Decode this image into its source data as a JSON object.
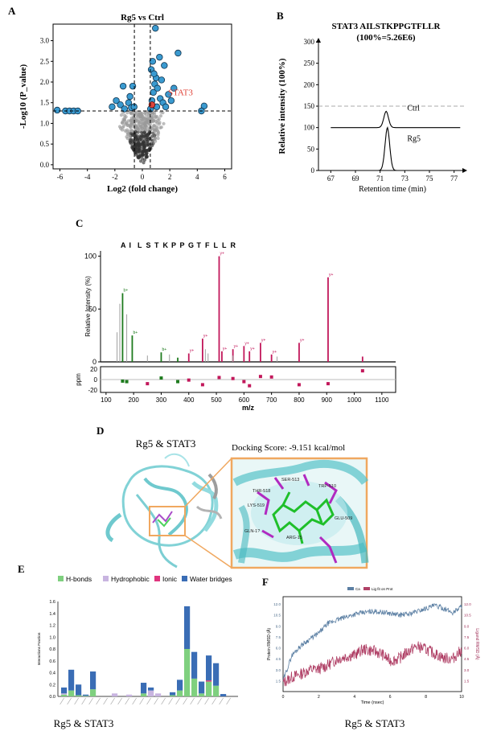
{
  "panels": {
    "A": {
      "letter": "A",
      "caption": "Rg5 vs Ctrl"
    },
    "B": {
      "letter": "B",
      "caption": ""
    },
    "C": {
      "letter": "C",
      "caption": ""
    },
    "D": {
      "letter": "D",
      "caption": "Rg5 & STAT3"
    },
    "E": {
      "letter": "E",
      "caption": "Rg5 & STAT3"
    },
    "F": {
      "letter": "F",
      "caption": "Rg5 & STAT3"
    }
  },
  "panel_d": {
    "docking_score": "Docking Score: -9.151 kcal/mol",
    "residues": [
      "THR-518",
      "SER-513",
      "LYS-519",
      "TRP-510",
      "GLU-509",
      "GLN-1?",
      "ARG-15"
    ]
  },
  "chart_data": [
    {
      "id": "A",
      "type": "scatter",
      "title": "Rg5 vs Ctrl",
      "xlabel": "Log2 (fold change)",
      "ylabel": "-Log10 (P_value)",
      "xlim": [
        -6.5,
        6.5
      ],
      "ylim": [
        -0.1,
        3.4
      ],
      "xticks": [
        -6,
        -4,
        -2,
        0,
        2,
        4,
        6
      ],
      "yticks": [
        0.0,
        0.5,
        1.0,
        1.5,
        2.0,
        2.5,
        3.0
      ],
      "thresholds": {
        "x": [
          -0.58,
          0.58
        ],
        "y": 1.3
      },
      "annotation": "STAT3",
      "highlight": {
        "name": "STAT3",
        "x": 0.7,
        "y": 1.45
      },
      "significant_points": [
        [
          -6.2,
          1.32
        ],
        [
          -5.6,
          1.3
        ],
        [
          -5.3,
          1.3
        ],
        [
          -5.0,
          1.3
        ],
        [
          -4.7,
          1.3
        ],
        [
          -2.2,
          1.4
        ],
        [
          -1.9,
          1.55
        ],
        [
          -1.6,
          1.45
        ],
        [
          -1.3,
          1.35
        ],
        [
          -1.0,
          1.5
        ],
        [
          -0.8,
          1.38
        ],
        [
          -1.4,
          1.9
        ],
        [
          -0.9,
          1.65
        ],
        [
          -0.7,
          1.9
        ],
        [
          -0.6,
          1.4
        ],
        [
          0.6,
          1.35
        ],
        [
          0.7,
          1.55
        ],
        [
          0.8,
          1.75
        ],
        [
          0.9,
          1.95
        ],
        [
          1.0,
          2.1
        ],
        [
          0.65,
          2.3
        ],
        [
          0.75,
          2.5
        ],
        [
          0.85,
          2.2
        ],
        [
          1.1,
          1.85
        ],
        [
          1.3,
          1.6
        ],
        [
          1.5,
          1.5
        ],
        [
          1.7,
          1.4
        ],
        [
          1.9,
          1.7
        ],
        [
          2.1,
          1.55
        ],
        [
          0.95,
          3.3
        ],
        [
          1.25,
          2.6
        ],
        [
          1.6,
          2.4
        ],
        [
          2.6,
          2.7
        ],
        [
          1.4,
          2.05
        ],
        [
          1.05,
          1.4
        ],
        [
          2.3,
          1.85
        ],
        [
          4.5,
          1.42
        ],
        [
          4.3,
          1.3
        ]
      ],
      "insignificant_points_note": "dense cloud near x=0, y<1.3"
    },
    {
      "id": "B",
      "type": "line",
      "title": "STAT3 AILSTKPPGTFLLR",
      "subtitle": "(100%=5.26E6)",
      "xlabel": "Retention time (min)",
      "ylabel": "Relative intensity (100%)",
      "xlim": [
        66,
        78
      ],
      "ylim": [
        0,
        300
      ],
      "xticks": [
        67,
        69,
        71,
        73,
        75,
        77
      ],
      "yticks": [
        0,
        50,
        100,
        150,
        200,
        250,
        300
      ],
      "series": [
        {
          "name": "Ctrl",
          "baseline": 100,
          "peak_x": 71.5,
          "peak_height": 38
        },
        {
          "name": "Rg5",
          "baseline": 0,
          "peak_x": 71.6,
          "peak_height": 100
        }
      ],
      "dashed_line_y": 150
    },
    {
      "id": "C",
      "type": "bar",
      "title": "",
      "sequence": [
        "A",
        "I",
        "L",
        "S",
        "T",
        "K",
        "P",
        "P",
        "G",
        "T",
        "F",
        "L",
        "L",
        "R"
      ],
      "xlabel": "m/z",
      "ylabel": "Relative Intensity (%)",
      "xlim": [
        80,
        1150
      ],
      "ylim": [
        0,
        105
      ],
      "xticks": [
        100,
        200,
        300,
        400,
        500,
        600,
        700,
        800,
        900,
        1000,
        1100
      ],
      "yticks": [
        0,
        50,
        100
      ],
      "ppm_label": "ppm",
      "ppm_ticks": [
        20,
        0,
        -20
      ],
      "peaks": [
        {
          "mz": 160,
          "i": 65,
          "ion": "b"
        },
        {
          "mz": 175,
          "i": 45,
          "ion": "other"
        },
        {
          "mz": 195,
          "i": 25,
          "ion": "b"
        },
        {
          "mz": 150,
          "i": 55,
          "ion": "other"
        },
        {
          "mz": 140,
          "i": 28,
          "ion": "other"
        },
        {
          "mz": 300,
          "i": 9,
          "ion": "b"
        },
        {
          "mz": 330,
          "i": 7,
          "ion": "other"
        },
        {
          "mz": 360,
          "i": 4,
          "ion": "b"
        },
        {
          "mz": 400,
          "i": 8,
          "ion": "y"
        },
        {
          "mz": 450,
          "i": 22,
          "ion": "y"
        },
        {
          "mz": 510,
          "i": 100,
          "ion": "y"
        },
        {
          "mz": 520,
          "i": 10,
          "ion": "y"
        },
        {
          "mz": 560,
          "i": 12,
          "ion": "y"
        },
        {
          "mz": 600,
          "i": 15,
          "ion": "y"
        },
        {
          "mz": 620,
          "i": 10,
          "ion": "y"
        },
        {
          "mz": 660,
          "i": 18,
          "ion": "y"
        },
        {
          "mz": 700,
          "i": 7,
          "ion": "y"
        },
        {
          "mz": 800,
          "i": 18,
          "ion": "y"
        },
        {
          "mz": 905,
          "i": 80,
          "ion": "y"
        },
        {
          "mz": 1030,
          "i": 5,
          "ion": "y"
        },
        {
          "mz": 250,
          "i": 6,
          "ion": "other"
        },
        {
          "mz": 460,
          "i": 12,
          "ion": "other"
        },
        {
          "mz": 470,
          "i": 8,
          "ion": "other"
        },
        {
          "mz": 560,
          "i": 6,
          "ion": "other"
        },
        {
          "mz": 720,
          "i": 5,
          "ion": "other"
        }
      ],
      "ppm_points": [
        {
          "mz": 160,
          "ppm": -3,
          "ion": "b"
        },
        {
          "mz": 175,
          "ppm": -4,
          "ion": "b"
        },
        {
          "mz": 300,
          "ppm": 3,
          "ion": "b"
        },
        {
          "mz": 360,
          "ppm": -4,
          "ion": "b"
        },
        {
          "mz": 400,
          "ppm": -1,
          "ion": "y"
        },
        {
          "mz": 450,
          "ppm": -10,
          "ion": "y"
        },
        {
          "mz": 510,
          "ppm": 4,
          "ion": "y"
        },
        {
          "mz": 560,
          "ppm": 2,
          "ion": "y"
        },
        {
          "mz": 600,
          "ppm": -4,
          "ion": "y"
        },
        {
          "mz": 660,
          "ppm": 6,
          "ion": "y"
        },
        {
          "mz": 700,
          "ppm": 5,
          "ion": "y"
        },
        {
          "mz": 800,
          "ppm": -10,
          "ion": "y"
        },
        {
          "mz": 905,
          "ppm": -8,
          "ion": "y"
        },
        {
          "mz": 1030,
          "ppm": 17,
          "ion": "y"
        },
        {
          "mz": 250,
          "ppm": -8,
          "ion": "y"
        },
        {
          "mz": 620,
          "ppm": -12,
          "ion": "y"
        }
      ],
      "colors": {
        "b": "#1e7b1e",
        "y": "#c2185b",
        "other": "#9e9e9e"
      }
    },
    {
      "id": "E",
      "type": "bar",
      "legend": [
        "H-bonds",
        "Hydrophobic",
        "Ionic",
        "Water bridges"
      ],
      "colors": {
        "H-bonds": "#7fd07f",
        "Hydrophobic": "#c8b4e0",
        "Ionic": "#e0357e",
        "Water bridges": "#3a6db5"
      },
      "ylabel": "Interactions Fraction",
      "ylim": [
        0,
        1.6
      ],
      "yticks": [
        0.0,
        0.2,
        0.4,
        0.6,
        0.8,
        1.0,
        1.2,
        1.4,
        1.6
      ],
      "bars": [
        {
          "h": 0.03,
          "hy": 0.02,
          "io": 0,
          "w": 0.1
        },
        {
          "h": 0.1,
          "hy": 0,
          "io": 0,
          "w": 0.35
        },
        {
          "h": 0.02,
          "hy": 0,
          "io": 0,
          "w": 0.18
        },
        {
          "h": 0.01,
          "hy": 0,
          "io": 0,
          "w": 0.02
        },
        {
          "h": 0.12,
          "hy": 0,
          "io": 0,
          "w": 0.3
        },
        {
          "h": 0,
          "hy": 0,
          "io": 0,
          "w": 0
        },
        {
          "h": 0,
          "hy": 0,
          "io": 0,
          "w": 0
        },
        {
          "h": 0,
          "hy": 0.05,
          "io": 0,
          "w": 0
        },
        {
          "h": 0,
          "hy": 0,
          "io": 0,
          "w": 0
        },
        {
          "h": 0,
          "hy": 0.03,
          "io": 0,
          "w": 0
        },
        {
          "h": 0,
          "hy": 0,
          "io": 0,
          "w": 0
        },
        {
          "h": 0.05,
          "hy": 0,
          "io": 0,
          "w": 0.18
        },
        {
          "h": 0,
          "hy": 0.1,
          "io": 0,
          "w": 0.05
        },
        {
          "h": 0,
          "hy": 0.05,
          "io": 0,
          "w": 0
        },
        {
          "h": 0,
          "hy": 0,
          "io": 0,
          "w": 0
        },
        {
          "h": 0.02,
          "hy": 0,
          "io": 0,
          "w": 0.05
        },
        {
          "h": 0.1,
          "hy": 0,
          "io": 0,
          "w": 0.18
        },
        {
          "h": 0.8,
          "hy": 0,
          "io": 0,
          "w": 0.72
        },
        {
          "h": 0.3,
          "hy": 0,
          "io": 0,
          "w": 0.45
        },
        {
          "h": 0.05,
          "hy": 0,
          "io": 0,
          "w": 0.2
        },
        {
          "h": 0.25,
          "hy": 0,
          "io": 0.02,
          "w": 0.42
        },
        {
          "h": 0.18,
          "hy": 0,
          "io": 0,
          "w": 0.38
        },
        {
          "h": 0,
          "hy": 0,
          "io": 0,
          "w": 0.04
        },
        {
          "h": 0,
          "hy": 0,
          "io": 0,
          "w": 0
        }
      ]
    },
    {
      "id": "F",
      "type": "line",
      "legend": [
        "Ca",
        "Lig fit on Prot"
      ],
      "xlabel": "Time (nsec)",
      "ylabel": "Protein RMSD (Å)",
      "y2label": "Ligand RMSD (Å)",
      "xlim": [
        0,
        10
      ],
      "xticks": [
        0,
        2,
        4,
        6,
        8,
        10
      ],
      "ylim": [
        0,
        13
      ],
      "yticks": [
        1.5,
        3.0,
        4.5,
        6.0,
        7.5,
        9.0,
        10.5,
        12.0
      ],
      "series": [
        {
          "name": "Ca",
          "color": "#5b7fa3",
          "values": [
            1.5,
            5.0,
            6.3,
            7.2,
            8.0,
            9.3,
            9.8,
            10.2,
            10.6,
            10.8,
            11.0,
            10.9,
            10.7,
            10.5,
            10.6,
            11.0,
            11.4,
            11.8,
            11.4,
            10.8,
            11.7
          ]
        },
        {
          "name": "Lig fit on Prot",
          "color": "#b04066",
          "values": [
            1.2,
            2.0,
            2.4,
            3.0,
            3.1,
            3.6,
            4.4,
            4.8,
            5.0,
            5.8,
            5.6,
            5.2,
            4.2,
            4.5,
            5.5,
            6.2,
            5.8,
            5.2,
            4.6,
            4.5,
            5.7
          ]
        }
      ]
    }
  ]
}
